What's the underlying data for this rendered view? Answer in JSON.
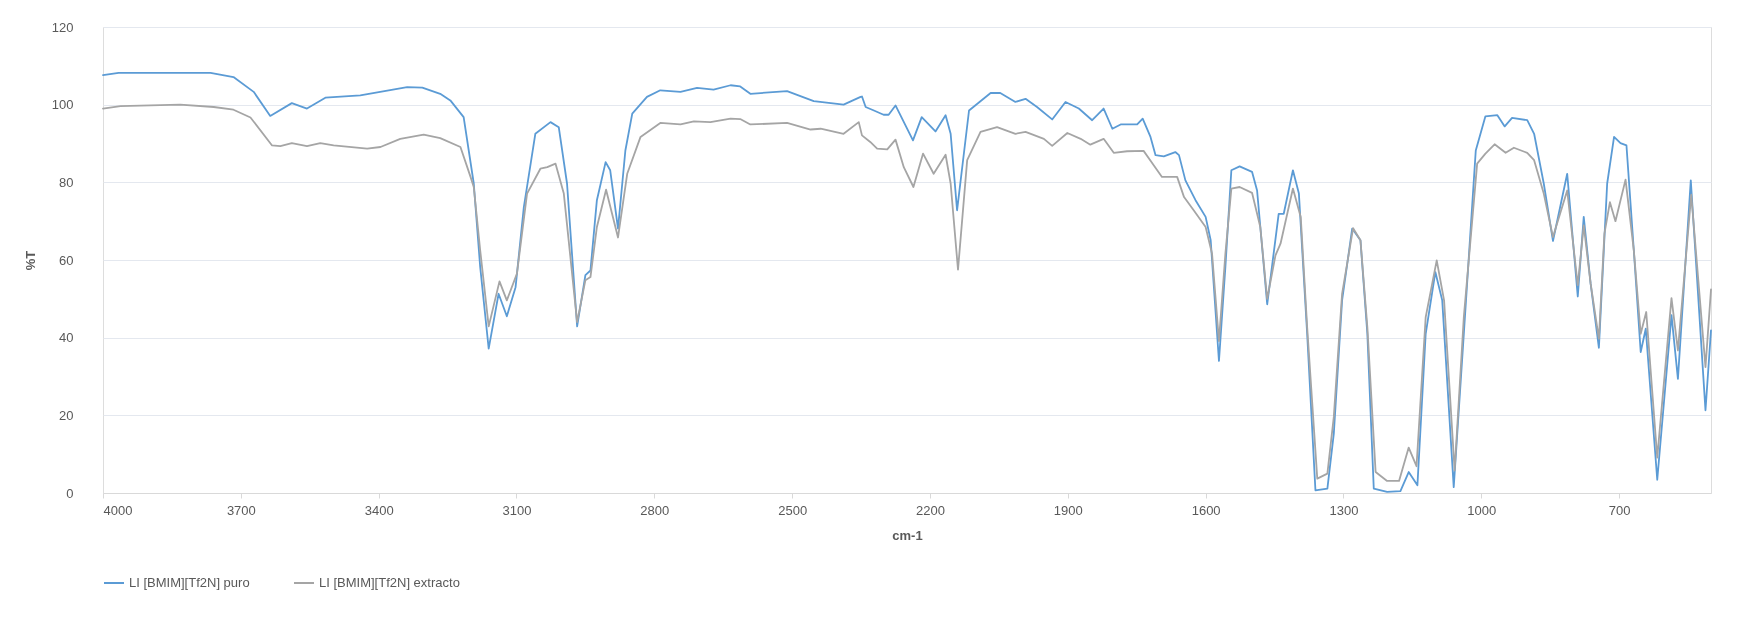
{
  "chart_data": {
    "type": "line",
    "xlabel": "cm-1",
    "ylabel": "%T",
    "xlim": [
      4000,
      500
    ],
    "xticks": [
      4000,
      3700,
      3400,
      3100,
      2800,
      2500,
      2200,
      1900,
      1600,
      1300,
      1000,
      700
    ],
    "ylim": [
      0,
      120
    ],
    "yticks": [
      0,
      20,
      40,
      60,
      80,
      100,
      120
    ],
    "grid": "y",
    "legend": "bottom",
    "line_style": "solid",
    "marker": "none",
    "series": [
      {
        "name": "LI [BMIM][Tf2N] puro",
        "color": "#5b9bd5",
        "x": [
          4000,
          3966,
          3766,
          3716,
          3672,
          3636,
          3589,
          3556,
          3516,
          3440,
          3338,
          3305,
          3266,
          3244,
          3215,
          3193,
          3179,
          3160.5,
          3139,
          3121,
          3102,
          3084,
          3059,
          3026,
          3008,
          2990,
          2968,
          2950,
          2939,
          2925,
          2906,
          2896,
          2879,
          2863,
          2848,
          2816,
          2787,
          2743,
          2707,
          2671,
          2634,
          2613,
          2591,
          2511,
          2453,
          2388,
          2351,
          2348,
          2340,
          2322,
          2301,
          2290,
          2275,
          2237,
          2218,
          2188,
          2166,
          2155,
          2141,
          2115,
          2068,
          2047,
          2014,
          1992,
          1967,
          1934,
          1905,
          1876,
          1847,
          1822,
          1803,
          1785,
          1749,
          1737,
          1720,
          1709,
          1691,
          1666,
          1658,
          1644,
          1622,
          1600,
          1589,
          1571,
          1557,
          1544,
          1526,
          1499,
          1488,
          1466,
          1441,
          1430,
          1410,
          1397,
          1379,
          1361,
          1335,
          1321,
          1303,
          1281,
          1263,
          1248,
          1234,
          1205,
          1176,
          1158,
          1139,
          1121,
          1100,
          1085,
          1060,
          1038,
          1012,
          991,
          965,
          949,
          933,
          900,
          885,
          864,
          844,
          813,
          790,
          777,
          762,
          744,
          726,
          711,
          697,
          684,
          668,
          653,
          642,
          617,
          586,
          572,
          544,
          512,
          500
        ],
        "values": [
          107.6,
          108.2,
          108.2,
          107.1,
          103.3,
          97.1,
          100.4,
          99.0,
          101.8,
          102.4,
          104.5,
          104.4,
          102.8,
          101.1,
          96.8,
          79.7,
          58.2,
          37.2,
          51.3,
          45.5,
          53.0,
          73.6,
          92.5,
          95.5,
          94.2,
          79.7,
          42.9,
          56.1,
          57.3,
          75.4,
          85.2,
          83.1,
          68.1,
          88.2,
          97.7,
          102.0,
          103.7,
          103.3,
          104.3,
          103.9,
          105.0,
          104.7,
          102.8,
          103.5,
          100.9,
          100.0,
          102.0,
          102.1,
          99.4,
          98.5,
          97.4,
          97.4,
          99.8,
          90.8,
          96.8,
          93.1,
          97.3,
          92.5,
          72.8,
          98.5,
          103.0,
          103.0,
          100.7,
          101.5,
          99.4,
          96.2,
          100.7,
          99.0,
          96.0,
          99.0,
          93.8,
          94.9,
          94.9,
          96.4,
          91.7,
          87.0,
          86.7,
          87.8,
          87.0,
          80.5,
          75.4,
          71.1,
          65.1,
          34.0,
          58.2,
          83.1,
          84.1,
          82.7,
          77.9,
          48.6,
          71.9,
          71.9,
          83.1,
          77.1,
          41.0,
          0.7,
          1.1,
          15.3,
          49.6,
          68.1,
          65.1,
          41.0,
          1.1,
          0.3,
          0.5,
          5.4,
          2.0,
          41.0,
          56.9,
          49.6,
          1.5,
          41.0,
          88.2,
          97.0,
          97.3,
          94.4,
          96.6,
          96.0,
          92.5,
          79.7,
          64.9,
          82.2,
          50.6,
          71.1,
          53.9,
          37.4,
          79.7,
          91.7,
          90.1,
          89.5,
          62.5,
          36.3,
          42.3,
          3.4,
          45.8,
          29.4,
          80.5,
          21.3,
          41.9
        ]
      },
      {
        "name": "LI [BMIM][Tf2N] extracto",
        "color": "#a5a5a5",
        "x": [
          4000,
          3962,
          3832,
          3759,
          3716,
          3679,
          3632,
          3614,
          3589,
          3556,
          3527,
          3498,
          3425,
          3396,
          3353,
          3302,
          3266,
          3222,
          3200,
          3193,
          3179,
          3160.5,
          3137,
          3121,
          3099,
          3077,
          3048,
          3033,
          3015,
          2997,
          2968,
          2950,
          2939,
          2925,
          2905,
          2879,
          2859,
          2830,
          2787,
          2743,
          2714,
          2678,
          2634,
          2613,
          2591,
          2511,
          2460,
          2438,
          2388,
          2355,
          2348,
          2330,
          2315,
          2293,
          2275,
          2257,
          2236,
          2215,
          2192,
          2166,
          2155,
          2139,
          2119,
          2090,
          2054,
          2014,
          1992,
          1952,
          1934,
          1901,
          1872,
          1851,
          1822,
          1800,
          1771,
          1735,
          1713,
          1695,
          1662,
          1647,
          1626,
          1600,
          1586,
          1571,
          1557,
          1544,
          1526,
          1499,
          1481,
          1466,
          1448,
          1437,
          1410,
          1393,
          1379,
          1357,
          1335,
          1321,
          1303,
          1279,
          1263,
          1248,
          1230,
          1205,
          1179,
          1158,
          1141,
          1121,
          1097,
          1081,
          1058,
          1038,
          1009,
          991,
          971,
          947,
          929,
          900,
          885,
          864,
          844,
          813,
          790,
          777,
          762,
          744,
          732,
          720,
          708,
          686,
          668,
          653,
          641,
          617,
          586,
          572,
          543,
          512,
          500
        ],
        "values": [
          99.0,
          99.6,
          100.0,
          99.4,
          98.7,
          96.7,
          89.5,
          89.3,
          90.1,
          89.3,
          90.1,
          89.5,
          88.7,
          89.1,
          91.2,
          92.3,
          91.4,
          89.1,
          81.4,
          78.8,
          62.5,
          42.9,
          54.5,
          49.6,
          56.5,
          77.1,
          83.5,
          83.9,
          84.8,
          77.1,
          44.0,
          54.8,
          55.6,
          68.5,
          78.1,
          65.8,
          82.2,
          91.7,
          95.3,
          94.9,
          95.7,
          95.5,
          96.4,
          96.3,
          94.9,
          95.3,
          93.6,
          93.8,
          92.5,
          95.5,
          92.1,
          90.4,
          88.7,
          88.5,
          91.0,
          83.9,
          78.8,
          87.4,
          82.2,
          87.1,
          79.7,
          57.5,
          85.7,
          93.0,
          94.2,
          92.5,
          93.0,
          91.2,
          89.4,
          92.7,
          91.2,
          89.7,
          91.2,
          87.6,
          88.0,
          88.1,
          84.4,
          81.4,
          81.4,
          76.2,
          72.8,
          68.5,
          61.6,
          39.1,
          61.6,
          78.4,
          78.8,
          77.3,
          68.5,
          50.0,
          61.2,
          64.2,
          78.4,
          71.1,
          42.7,
          3.7,
          5.0,
          19.6,
          51.3,
          68.2,
          65.1,
          42.7,
          5.4,
          3.1,
          3.1,
          11.7,
          6.9,
          45.3,
          59.9,
          49.6,
          5.8,
          45.3,
          84.8,
          87.4,
          89.8,
          87.6,
          88.9,
          87.6,
          85.7,
          77.1,
          65.9,
          77.9,
          53.5,
          68.9,
          53.9,
          39.7,
          66.8,
          74.9,
          70.0,
          80.7,
          62.5,
          41.0,
          46.6,
          9.1,
          50.2,
          36.7,
          76.8,
          32.4,
          52.4
        ]
      }
    ]
  }
}
